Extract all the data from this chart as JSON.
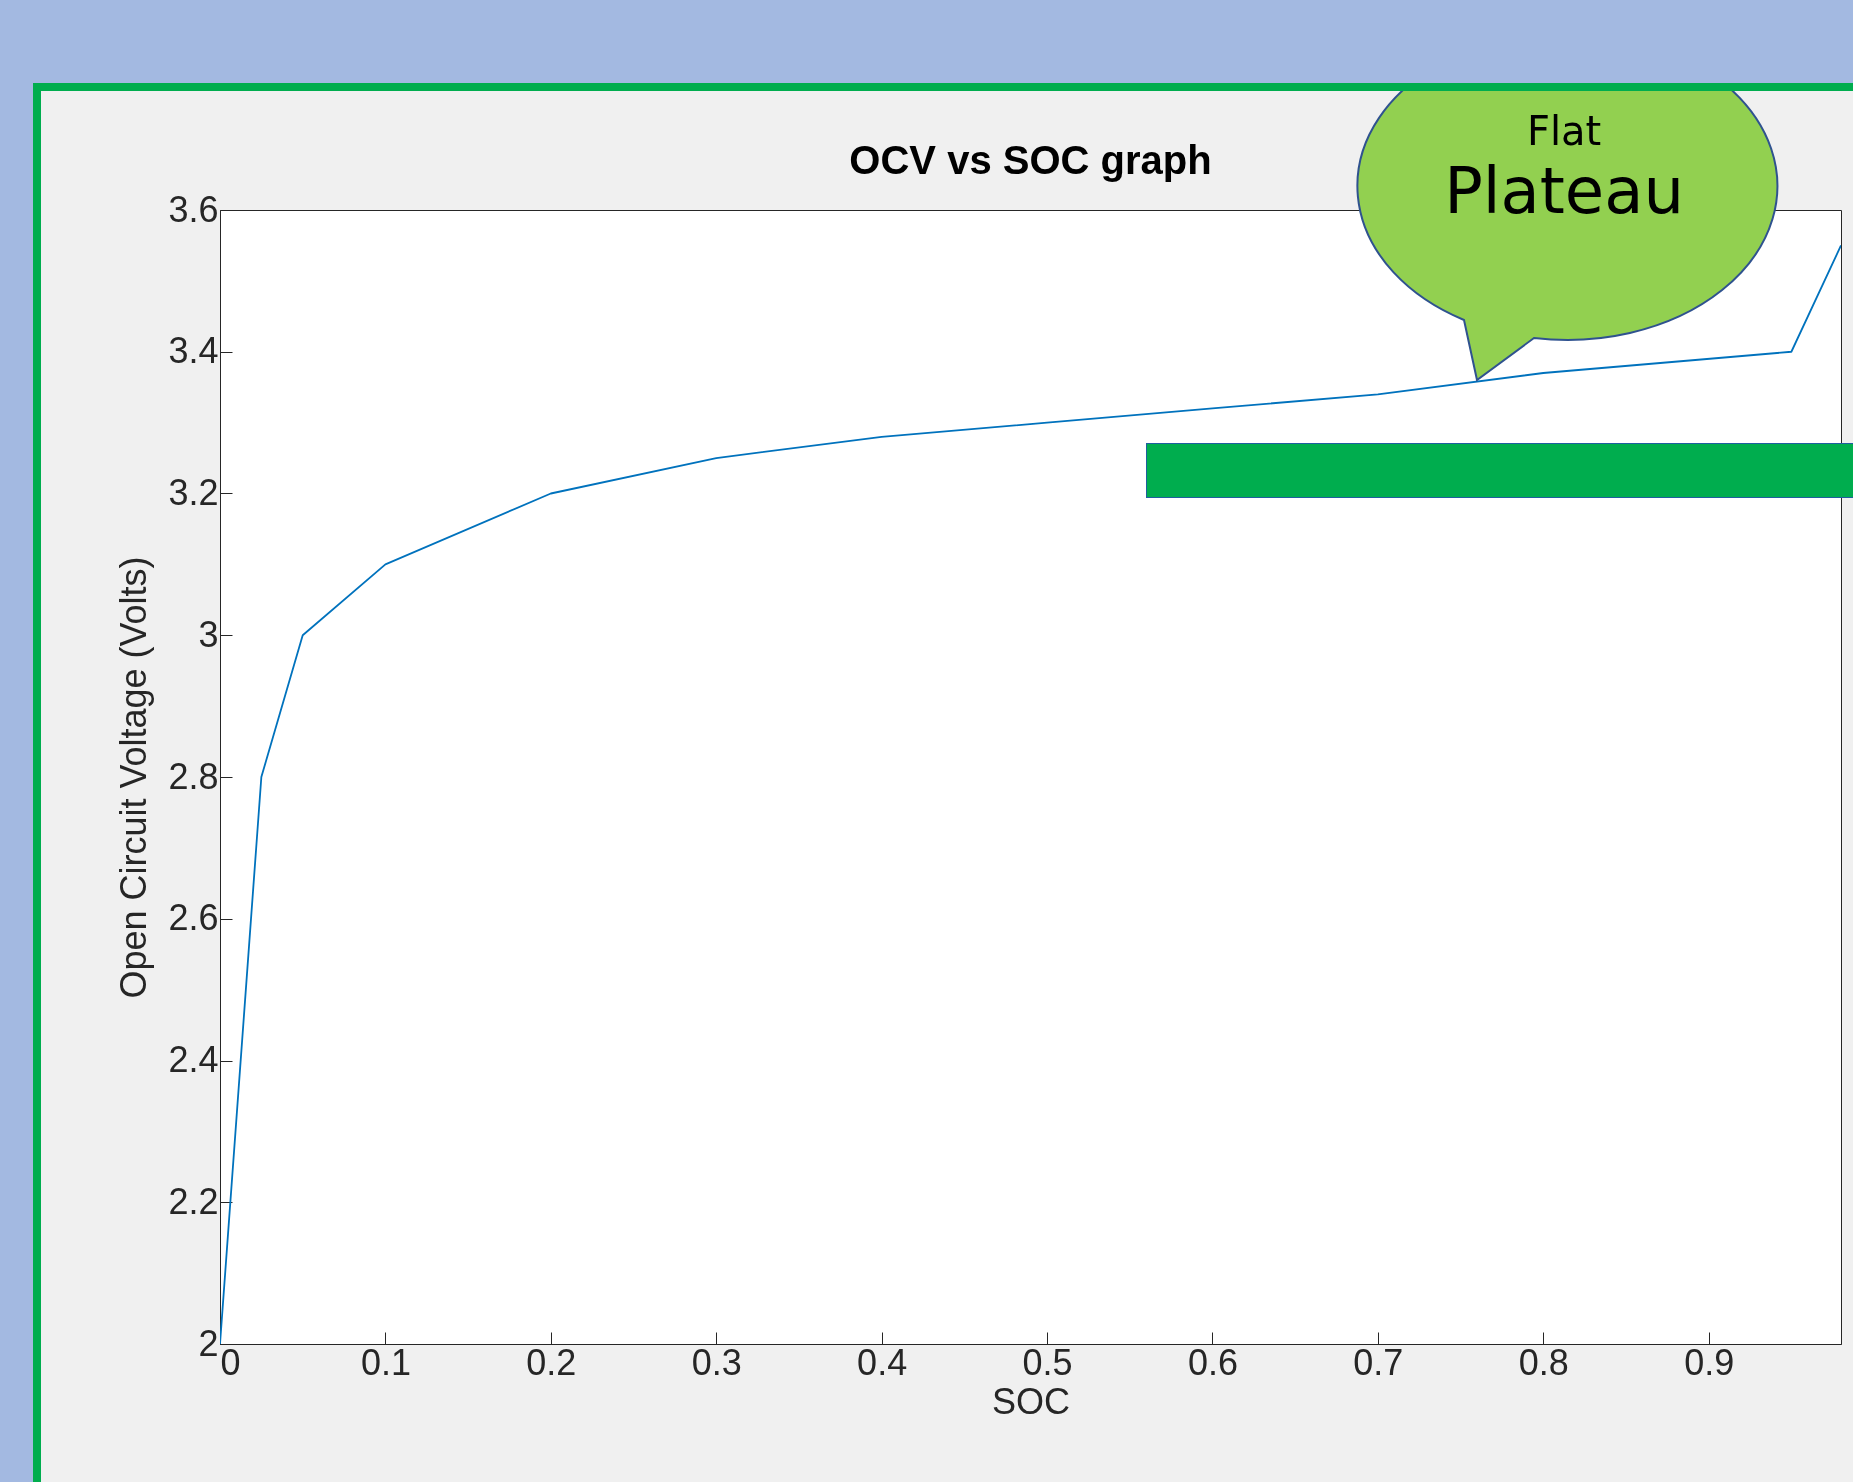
{
  "chart_data": {
    "type": "line",
    "title": "OCV vs SOC graph",
    "xlabel": "SOC",
    "ylabel": "Open Circuit Voltage (Volts)",
    "x": [
      0,
      0.025,
      0.05,
      0.1,
      0.2,
      0.3,
      0.4,
      0.5,
      0.6,
      0.7,
      0.8,
      0.95,
      0.98
    ],
    "series": [
      {
        "color": "#0072bd",
        "values": [
          2,
          2.8,
          3.0,
          3.1,
          3.2,
          3.25,
          3.28,
          3.3,
          3.32,
          3.34,
          3.37,
          3.4,
          3.55
        ]
      }
    ],
    "xlim": [
      0,
      0.98
    ],
    "xticks": [
      0,
      0.1,
      0.2,
      0.3,
      0.4,
      0.5,
      0.6,
      0.7,
      0.8,
      0.9
    ],
    "ylim": [
      2,
      3.6
    ],
    "yticks": [
      2,
      2.2,
      2.4,
      2.6,
      2.8,
      3,
      3.2,
      3.4,
      3.6
    ],
    "grid": false,
    "marker": "none",
    "line_style": "solid",
    "annotations": [
      {
        "text": "Flat Plateau",
        "x": 0.76,
        "y": 3.36
      }
    ]
  }
}
